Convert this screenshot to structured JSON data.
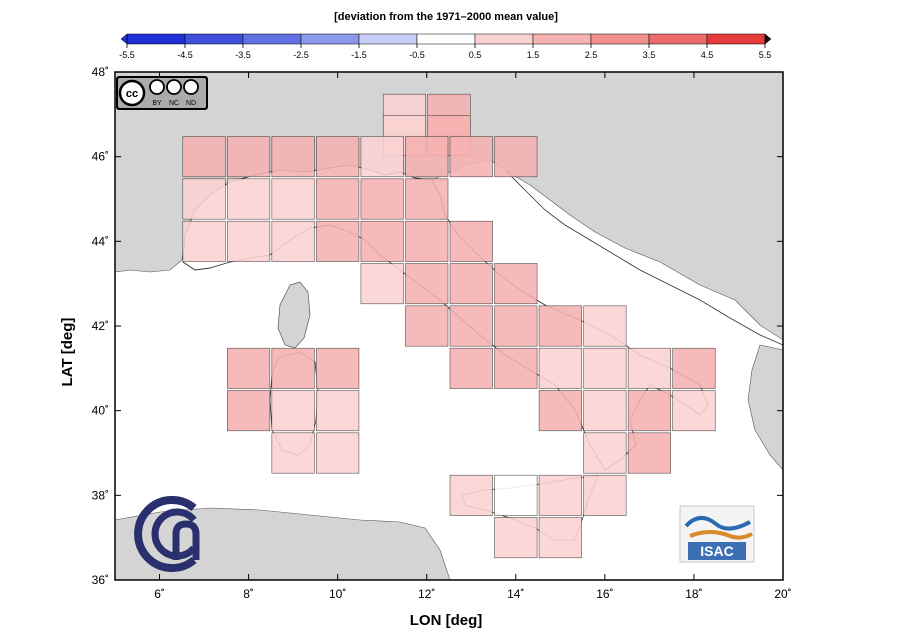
{
  "colorbar": {
    "title": "[deviation from the 1971–2000 mean value]",
    "ticks": [
      "-5.5",
      "-4.5",
      "-3.5",
      "-2.5",
      "-1.5",
      "-0.5",
      "0.5",
      "1.5",
      "2.5",
      "3.5",
      "4.5",
      "5.5"
    ],
    "colors": [
      "#1f2fd6",
      "#3f50dc",
      "#6272e2",
      "#8c98e9",
      "#c8cdf5",
      "#ffffff",
      "#fbd2d2",
      "#f6b1b1",
      "#f18f8f",
      "#ec6b6b",
      "#e63b3b"
    ]
  },
  "axes": {
    "xlabel": "LON [deg]",
    "ylabel": "LAT [deg]",
    "xticks": [
      "6˚",
      "8˚",
      "10˚",
      "12˚",
      "14˚",
      "16˚",
      "18˚",
      "20˚"
    ],
    "yticks": [
      "36˚",
      "38˚",
      "40˚",
      "42˚",
      "44˚",
      "46˚",
      "48˚"
    ],
    "xrange": [
      5,
      20
    ],
    "yrange": [
      36,
      48
    ]
  },
  "license_badge": {
    "labels": [
      "BY",
      "NC",
      "ND"
    ]
  },
  "logos": {
    "isac_text": "ISAC"
  },
  "chart_data": {
    "type": "heatmap",
    "xlabel": "LON [deg]",
    "ylabel": "LAT [deg]",
    "xlim": [
      5,
      20
    ],
    "ylim": [
      36,
      48
    ],
    "cell_size_deg": 1,
    "cell_color_levels": {
      "1": "#fbd2d2",
      "2": "#f6b1b1",
      "3": "#f18f8f",
      "0": "#ffffff"
    },
    "cells": [
      {
        "lon": 11.5,
        "lat": 47.0,
        "lvl": 1
      },
      {
        "lon": 12.5,
        "lat": 47.0,
        "lvl": 2
      },
      {
        "lon": 11.5,
        "lat": 46.5,
        "lvl": 1
      },
      {
        "lon": 12.5,
        "lat": 46.5,
        "lvl": 2
      },
      {
        "lon": 7.0,
        "lat": 46.0,
        "lvl": 2
      },
      {
        "lon": 8.0,
        "lat": 46.0,
        "lvl": 2
      },
      {
        "lon": 9.0,
        "lat": 46.0,
        "lvl": 2
      },
      {
        "lon": 10.0,
        "lat": 46.0,
        "lvl": 2
      },
      {
        "lon": 11.0,
        "lat": 46.0,
        "lvl": 1
      },
      {
        "lon": 12.0,
        "lat": 46.0,
        "lvl": 2
      },
      {
        "lon": 13.0,
        "lat": 46.0,
        "lvl": 2
      },
      {
        "lon": 14.0,
        "lat": 46.0,
        "lvl": 2
      },
      {
        "lon": 7.0,
        "lat": 45.0,
        "lvl": 1
      },
      {
        "lon": 8.0,
        "lat": 45.0,
        "lvl": 1
      },
      {
        "lon": 9.0,
        "lat": 45.0,
        "lvl": 1
      },
      {
        "lon": 10.0,
        "lat": 45.0,
        "lvl": 2
      },
      {
        "lon": 11.0,
        "lat": 45.0,
        "lvl": 2
      },
      {
        "lon": 12.0,
        "lat": 45.0,
        "lvl": 2
      },
      {
        "lon": 7.0,
        "lat": 44.0,
        "lvl": 1
      },
      {
        "lon": 8.0,
        "lat": 44.0,
        "lvl": 1
      },
      {
        "lon": 9.0,
        "lat": 44.0,
        "lvl": 1
      },
      {
        "lon": 10.0,
        "lat": 44.0,
        "lvl": 2
      },
      {
        "lon": 11.0,
        "lat": 44.0,
        "lvl": 2
      },
      {
        "lon": 12.0,
        "lat": 44.0,
        "lvl": 2
      },
      {
        "lon": 13.0,
        "lat": 44.0,
        "lvl": 2
      },
      {
        "lon": 11.0,
        "lat": 43.0,
        "lvl": 1
      },
      {
        "lon": 12.0,
        "lat": 43.0,
        "lvl": 2
      },
      {
        "lon": 13.0,
        "lat": 43.0,
        "lvl": 2
      },
      {
        "lon": 14.0,
        "lat": 43.0,
        "lvl": 2
      },
      {
        "lon": 12.0,
        "lat": 42.0,
        "lvl": 2
      },
      {
        "lon": 13.0,
        "lat": 42.0,
        "lvl": 2
      },
      {
        "lon": 14.0,
        "lat": 42.0,
        "lvl": 2
      },
      {
        "lon": 15.0,
        "lat": 42.0,
        "lvl": 2
      },
      {
        "lon": 16.0,
        "lat": 42.0,
        "lvl": 1
      },
      {
        "lon": 8.0,
        "lat": 41.0,
        "lvl": 2
      },
      {
        "lon": 9.0,
        "lat": 41.0,
        "lvl": 2
      },
      {
        "lon": 10.0,
        "lat": 41.0,
        "lvl": 2
      },
      {
        "lon": 13.0,
        "lat": 41.0,
        "lvl": 2
      },
      {
        "lon": 14.0,
        "lat": 41.0,
        "lvl": 2
      },
      {
        "lon": 15.0,
        "lat": 41.0,
        "lvl": 1
      },
      {
        "lon": 16.0,
        "lat": 41.0,
        "lvl": 1
      },
      {
        "lon": 17.0,
        "lat": 41.0,
        "lvl": 1
      },
      {
        "lon": 18.0,
        "lat": 41.0,
        "lvl": 2
      },
      {
        "lon": 8.0,
        "lat": 40.0,
        "lvl": 2
      },
      {
        "lon": 9.0,
        "lat": 40.0,
        "lvl": 1
      },
      {
        "lon": 10.0,
        "lat": 40.0,
        "lvl": 1
      },
      {
        "lon": 15.0,
        "lat": 40.0,
        "lvl": 2
      },
      {
        "lon": 16.0,
        "lat": 40.0,
        "lvl": 1
      },
      {
        "lon": 17.0,
        "lat": 40.0,
        "lvl": 2
      },
      {
        "lon": 18.0,
        "lat": 40.0,
        "lvl": 1
      },
      {
        "lon": 9.0,
        "lat": 39.0,
        "lvl": 1
      },
      {
        "lon": 10.0,
        "lat": 39.0,
        "lvl": 1
      },
      {
        "lon": 16.0,
        "lat": 39.0,
        "lvl": 1
      },
      {
        "lon": 17.0,
        "lat": 39.0,
        "lvl": 2
      },
      {
        "lon": 13.0,
        "lat": 38.0,
        "lvl": 1
      },
      {
        "lon": 14.0,
        "lat": 38.0,
        "lvl": 0
      },
      {
        "lon": 15.0,
        "lat": 38.0,
        "lvl": 1
      },
      {
        "lon": 16.0,
        "lat": 38.0,
        "lvl": 1
      },
      {
        "lon": 14.0,
        "lat": 37.0,
        "lvl": 1
      },
      {
        "lon": 15.0,
        "lat": 37.0,
        "lvl": 1
      }
    ]
  }
}
